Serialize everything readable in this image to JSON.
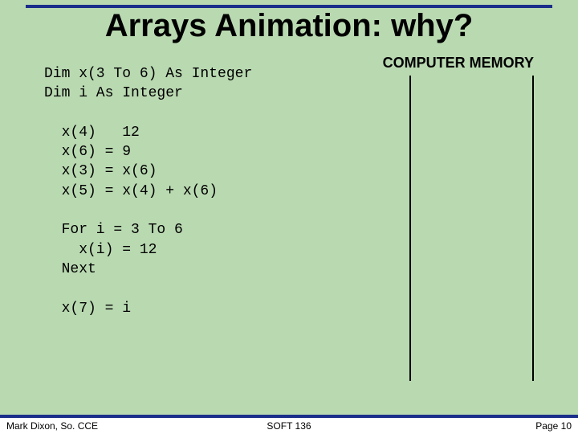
{
  "title": "Arrays Animation: why?",
  "code": "Dim x(3 To 6) As Integer\nDim i As Integer\n\n  x(4)   12\n  x(6) = 9\n  x(3) = x(6)\n  x(5) = x(4) + x(6)\n\n  For i = 3 To 6\n    x(i) = 12\n  Next\n\n  x(7) = i",
  "memory_label": "COMPUTER MEMORY",
  "footer": {
    "left": "Mark Dixon, So. CCE",
    "center": "SOFT 136",
    "right": "Page 10"
  },
  "colors": {
    "background": "#b9d9b1",
    "rule": "#1a2e8a",
    "text": "#000000",
    "footer_bg": "#ffffff"
  },
  "fonts": {
    "title_size": 40,
    "code_size": 18,
    "footer_size": 12,
    "code_family": "Courier New",
    "title_family": "Arial"
  }
}
